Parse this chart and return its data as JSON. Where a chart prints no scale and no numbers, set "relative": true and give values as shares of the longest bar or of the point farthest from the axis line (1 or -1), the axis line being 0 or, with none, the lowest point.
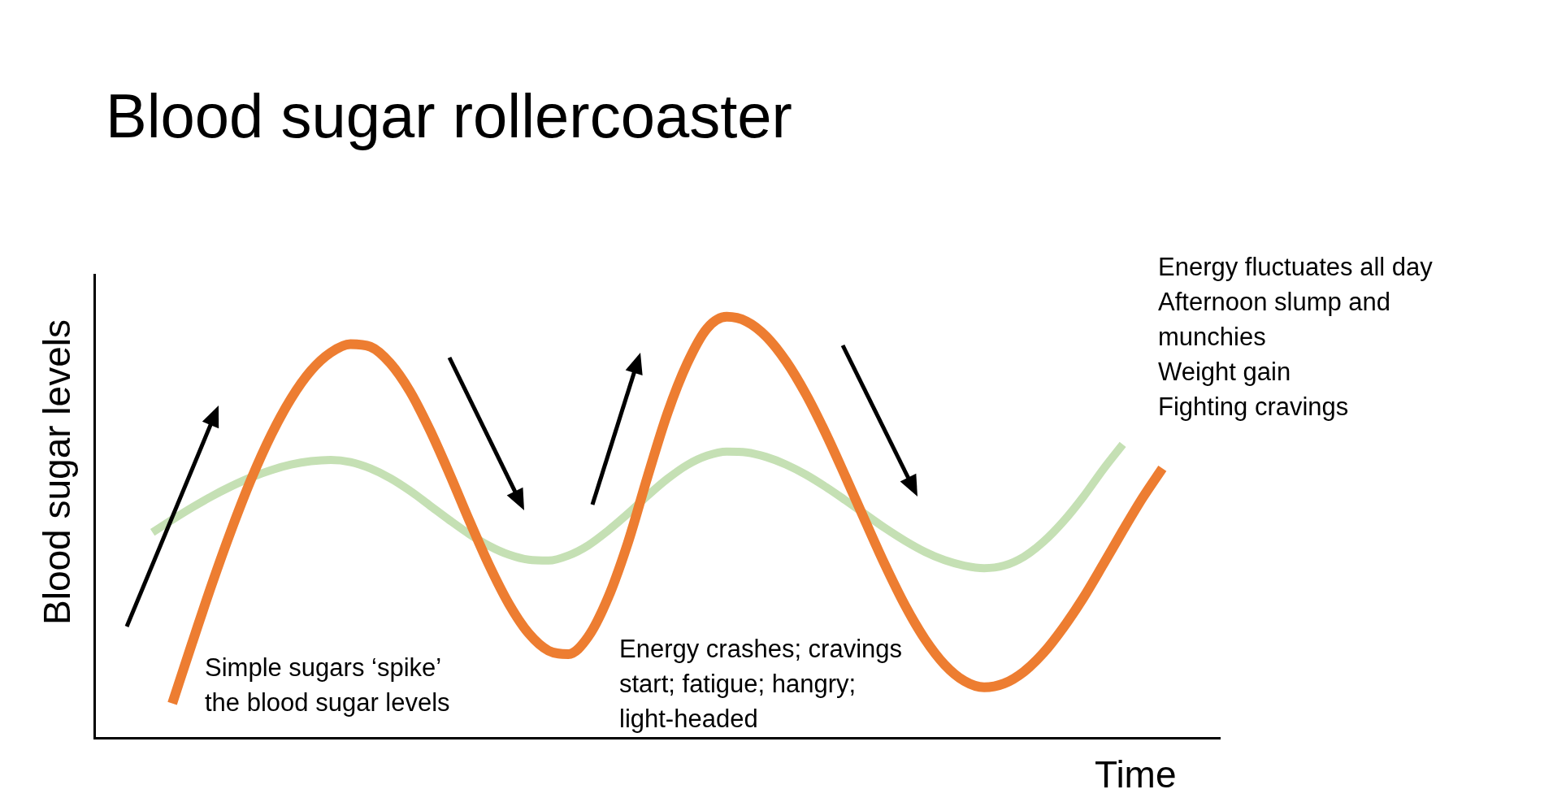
{
  "chart_data": {
    "type": "line",
    "title": "Blood sugar rollercoaster",
    "xlabel": "Time",
    "ylabel": "Blood sugar levels",
    "relative": true,
    "categories": [
      null,
      null,
      null,
      null,
      null,
      null,
      null,
      null,
      null,
      null,
      null,
      null,
      null,
      null,
      null,
      null,
      null,
      null,
      null,
      null,
      null,
      null,
      null,
      null,
      null,
      null,
      null,
      null,
      null,
      null,
      null,
      null,
      null,
      null,
      null,
      null,
      null,
      null,
      null,
      null,
      null,
      null,
      null,
      null,
      null,
      null,
      null,
      null,
      null,
      null,
      null,
      null
    ],
    "series": [
      {
        "color": "#ed7d31",
        "values": [
          null,
          0.082,
          0.225,
          0.365,
          0.496,
          0.616,
          0.72,
          0.806,
          0.872,
          0.915,
          0.935,
          0.929,
          0.89,
          0.823,
          0.732,
          0.627,
          0.516,
          0.41,
          0.318,
          0.248,
          0.207,
          0.199,
          0.24,
          0.332,
          0.462,
          0.62,
          0.77,
          0.889,
          0.972,
          1.0,
          0.989,
          0.953,
          0.894,
          0.816,
          0.723,
          0.62,
          0.514,
          0.41,
          0.315,
          0.235,
          0.174,
          0.135,
          0.12,
          0.129,
          0.157,
          0.202,
          0.262,
          0.332,
          0.411,
          0.492,
          0.57,
          0.64
        ]
      },
      {
        "color": "#c5e0b4",
        "values": [
          0.488,
          0.518,
          0.547,
          0.574,
          0.598,
          0.619,
          0.636,
          0.649,
          0.657,
          0.66,
          0.655,
          0.64,
          0.617,
          0.587,
          0.552,
          0.517,
          0.484,
          0.456,
          0.435,
          0.423,
          0.421,
          0.433,
          0.457,
          0.492,
          0.532,
          0.575,
          0.615,
          0.648,
          0.67,
          0.68,
          0.678,
          0.667,
          0.649,
          0.625,
          0.596,
          0.564,
          0.531,
          0.498,
          0.468,
          0.442,
          0.422,
          0.409,
          0.403,
          0.409,
          0.43,
          0.466,
          0.514,
          0.572,
          0.637,
          0.697,
          null,
          null
        ]
      }
    ],
    "annotations": [
      "Simple sugars ‘spike’ the blood sugar levels",
      "Energy crashes; cravings start; fatigue; hangry; light-headed",
      "Energy fluctuates all day",
      "Afternoon slump and munchies",
      "Weight gain",
      "Fighting cravings"
    ]
  }
}
